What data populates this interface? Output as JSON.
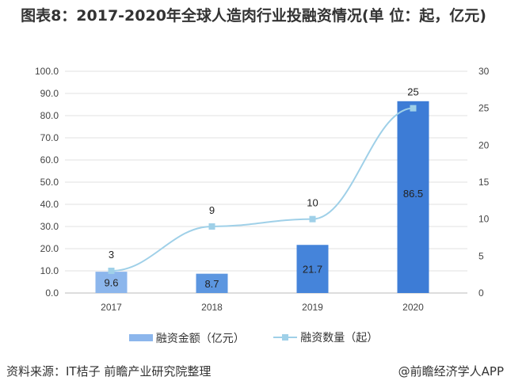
{
  "title": "图表8：2017-2020年全球人造肉行业投融资情况(单 位：起，亿元)",
  "source": "资料来源：IT桔子 前瞻产业研究院整理",
  "brand": "@前瞻经济学人APP",
  "chart_data": {
    "type": "bar+line",
    "title": "图表8：2017-2020年全球人造肉行业投融资情况(单 位：起，亿元)",
    "categories": [
      "2017",
      "2018",
      "2019",
      "2020"
    ],
    "series": [
      {
        "name": "融资金额（亿元）",
        "type": "bar",
        "axis": "left",
        "values": [
          9.6,
          8.7,
          21.7,
          86.5
        ],
        "colors": [
          "#8cb6ec",
          "#5c96e0",
          "#4584da",
          "#3d7cd6"
        ]
      },
      {
        "name": "融资数量（起）",
        "type": "line",
        "axis": "right",
        "values": [
          3,
          9,
          10,
          25
        ],
        "color": "#9fd0e8",
        "marker": "square"
      }
    ],
    "left_axis": {
      "ylim": [
        0,
        100
      ],
      "ticks": [
        "0.0",
        "10.0",
        "20.0",
        "30.0",
        "40.0",
        "50.0",
        "60.0",
        "70.0",
        "80.0",
        "90.0",
        "100.0"
      ]
    },
    "right_axis": {
      "ylim": [
        0,
        30
      ],
      "ticks": [
        "0",
        "5",
        "10",
        "15",
        "20",
        "25",
        "30"
      ]
    },
    "grid": true,
    "legend": "bottom"
  }
}
